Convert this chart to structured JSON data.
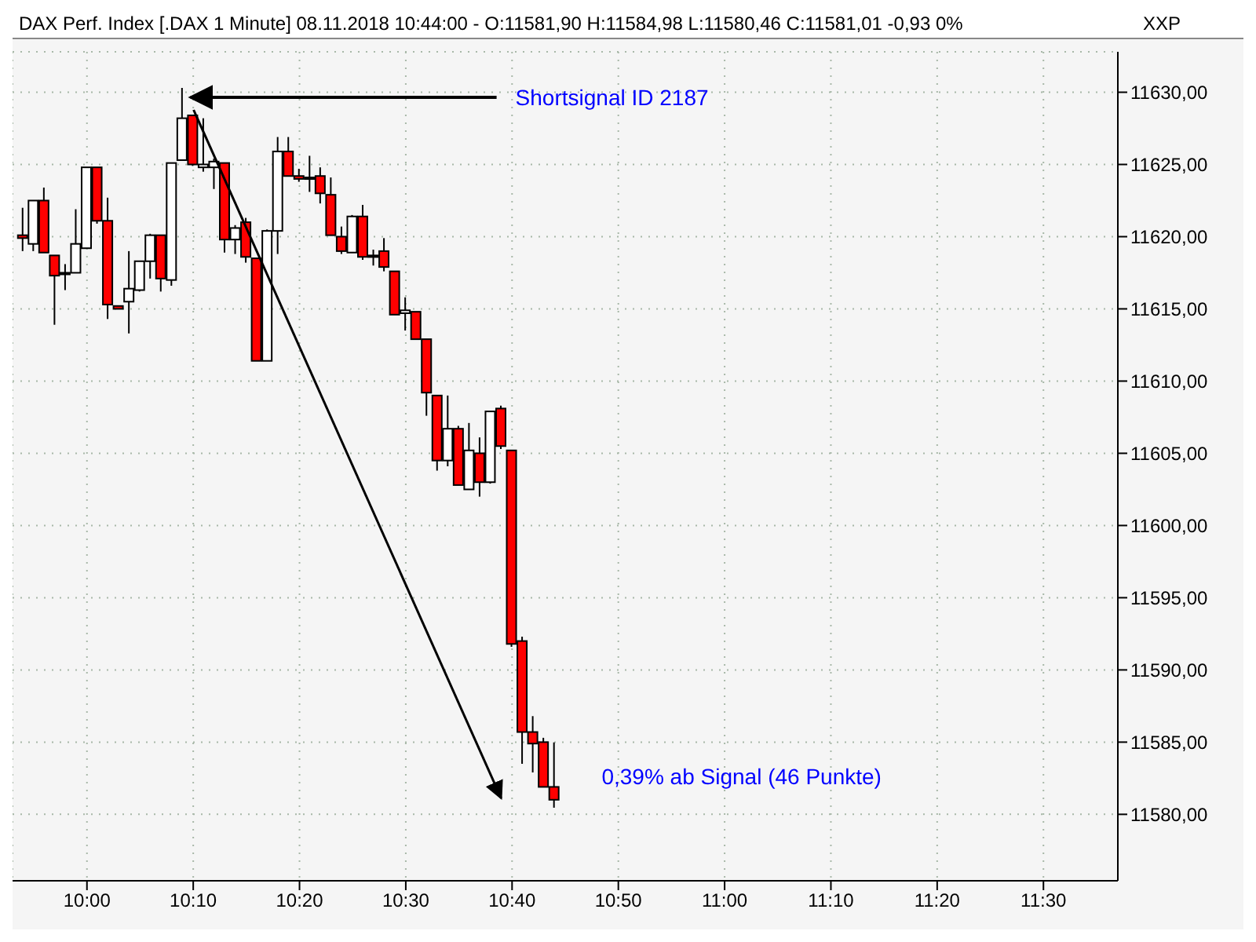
{
  "chart_data": {
    "type": "candlestick",
    "title": "DAX Perf. Index [.DAX  1 Minute] 08.11.2018 10:44:00 - O:11581,90 H:11584,98 L:11580,46 C:11581,01 -0,93 0%",
    "x": [
      "2018-11-08T09:54",
      "2018-11-08T09:55",
      "2018-11-08T09:56",
      "2018-11-08T09:57",
      "2018-11-08T09:58",
      "2018-11-08T09:59",
      "2018-11-08T10:00",
      "2018-11-08T10:01",
      "2018-11-08T10:02",
      "2018-11-08T10:03",
      "2018-11-08T10:04",
      "2018-11-08T10:05",
      "2018-11-08T10:06",
      "2018-11-08T10:07",
      "2018-11-08T10:08",
      "2018-11-08T10:09",
      "2018-11-08T10:10",
      "2018-11-08T10:11",
      "2018-11-08T10:12",
      "2018-11-08T10:13",
      "2018-11-08T10:14",
      "2018-11-08T10:15",
      "2018-11-08T10:16",
      "2018-11-08T10:17",
      "2018-11-08T10:18",
      "2018-11-08T10:19",
      "2018-11-08T10:20",
      "2018-11-08T10:21",
      "2018-11-08T10:22",
      "2018-11-08T10:23",
      "2018-11-08T10:24",
      "2018-11-08T10:25",
      "2018-11-08T10:26",
      "2018-11-08T10:27",
      "2018-11-08T10:28",
      "2018-11-08T10:29",
      "2018-11-08T10:30",
      "2018-11-08T10:31",
      "2018-11-08T10:32",
      "2018-11-08T10:33",
      "2018-11-08T10:34",
      "2018-11-08T10:35",
      "2018-11-08T10:36",
      "2018-11-08T10:37",
      "2018-11-08T10:38",
      "2018-11-08T10:39",
      "2018-11-08T10:40",
      "2018-11-08T10:41",
      "2018-11-08T10:42",
      "2018-11-08T10:43",
      "2018-11-08T10:44"
    ],
    "ohlc": [
      [
        11620.1,
        11622.0,
        11619.0,
        11619.9
      ],
      [
        11619.5,
        11622.5,
        11619.0,
        11622.5
      ],
      [
        11622.5,
        11623.4,
        11618.9,
        11618.9
      ],
      [
        11618.7,
        11618.7,
        11613.9,
        11617.3
      ],
      [
        11617.5,
        11618.1,
        11616.3,
        11617.5
      ],
      [
        11617.5,
        11621.9,
        11617.5,
        11619.5
      ],
      [
        11619.2,
        11624.8,
        11619.2,
        11624.8
      ],
      [
        11624.8,
        11624.8,
        11620.9,
        11621.1
      ],
      [
        11621.1,
        11622.7,
        11614.3,
        11615.3
      ],
      [
        11615.2,
        11615.2,
        11615.0,
        11615.0
      ],
      [
        11615.5,
        11619.0,
        11613.3,
        11616.4
      ],
      [
        11616.3,
        11618.3,
        11616.2,
        11618.3
      ],
      [
        11618.3,
        11620.2,
        11617.1,
        11620.1
      ],
      [
        11620.1,
        11620.1,
        11616.2,
        11617.1
      ],
      [
        11617.0,
        11625.1,
        11616.6,
        11625.1
      ],
      [
        11625.3,
        11630.3,
        11625.3,
        11628.2
      ],
      [
        11628.4,
        11628.4,
        11624.9,
        11625.0
      ],
      [
        11624.8,
        11628.2,
        11624.5,
        11625.0
      ],
      [
        11624.8,
        11625.4,
        11623.3,
        11625.2
      ],
      [
        11625.1,
        11625.1,
        11618.9,
        11619.8
      ],
      [
        11619.8,
        11620.8,
        11618.8,
        11620.6
      ],
      [
        11621.0,
        11621.3,
        11618.2,
        11618.6
      ],
      [
        11618.5,
        11618.5,
        11611.4,
        11611.4
      ],
      [
        11611.4,
        11620.5,
        11611.4,
        11620.4
      ],
      [
        11620.4,
        11626.9,
        11618.8,
        11625.9
      ],
      [
        11625.9,
        11626.9,
        11624.2,
        11624.2
      ],
      [
        11624.2,
        11624.7,
        11623.8,
        11624.0
      ],
      [
        11624.1,
        11625.6,
        11623.1,
        11624.1
      ],
      [
        11624.2,
        11624.8,
        11622.3,
        11623.0
      ],
      [
        11622.9,
        11624.1,
        11620.1,
        11620.1
      ],
      [
        11620.0,
        11620.7,
        11618.8,
        11619.0
      ],
      [
        11618.9,
        11621.5,
        11618.9,
        11621.4
      ],
      [
        11621.4,
        11622.2,
        11618.4,
        11618.6
      ],
      [
        11618.7,
        11619.1,
        11618.0,
        11618.7
      ],
      [
        11619.0,
        11619.9,
        11617.6,
        11617.9
      ],
      [
        11617.6,
        11617.6,
        11614.6,
        11614.6
      ],
      [
        11614.7,
        11615.8,
        11613.5,
        11614.9
      ],
      [
        11614.8,
        11614.8,
        11612.9,
        11612.9
      ],
      [
        11612.9,
        11612.9,
        11607.6,
        11609.2
      ],
      [
        11609.0,
        11609.0,
        11603.8,
        11604.5
      ],
      [
        11604.5,
        11609.0,
        11604.1,
        11606.7
      ],
      [
        11606.7,
        11606.9,
        11602.8,
        11602.8
      ],
      [
        11602.5,
        11607.1,
        11602.5,
        11605.2
      ],
      [
        11605.0,
        11606.1,
        11602.0,
        11603.0
      ],
      [
        11603.0,
        11607.9,
        11602.9,
        11607.9
      ],
      [
        11608.1,
        11608.3,
        11605.3,
        11605.5
      ],
      [
        11605.2,
        11605.2,
        11591.6,
        11591.8
      ],
      [
        11592.0,
        11592.3,
        11583.5,
        11585.7
      ],
      [
        11585.7,
        11586.8,
        11582.9,
        11584.9
      ],
      [
        11585.0,
        11585.3,
        11581.9,
        11581.9
      ],
      [
        11581.9,
        11584.98,
        11580.46,
        11581.01
      ]
    ],
    "colors": [
      "#ff0000",
      "#ffffff",
      "#ff0000",
      "#ff0000",
      "#ffffff",
      "#ffffff",
      "#ffffff",
      "#ff0000",
      "#ff0000",
      "#ff0000",
      "#ffffff",
      "#ffffff",
      "#ffffff",
      "#ff0000",
      "#ffffff",
      "#ffffff",
      "#ff0000",
      "#ffffff",
      "#ffffff",
      "#ff0000",
      "#ffffff",
      "#ff0000",
      "#ff0000",
      "#ffffff",
      "#ffffff",
      "#ff0000",
      "#ff0000",
      "#ffffff",
      "#ff0000",
      "#ff0000",
      "#ff0000",
      "#ffffff",
      "#ff0000",
      "#ffffff",
      "#ff0000",
      "#ff0000",
      "#ffffff",
      "#ff0000",
      "#ff0000",
      "#ff0000",
      "#ffffff",
      "#ff0000",
      "#ffffff",
      "#ff0000",
      "#ffffff",
      "#ff0000",
      "#ff0000",
      "#ff0000",
      "#ff0000",
      "#ff0000",
      "#ff0000"
    ],
    "xlim": [
      "2018-11-08T09:53",
      "2018-11-08T11:37"
    ],
    "xticks": [
      {
        "value": "2018-11-08T10:00",
        "label": "10:00"
      },
      {
        "value": "2018-11-08T10:10",
        "label": "10:10"
      },
      {
        "value": "2018-11-08T10:20",
        "label": "10:20"
      },
      {
        "value": "2018-11-08T10:30",
        "label": "10:30"
      },
      {
        "value": "2018-11-08T10:40",
        "label": "10:40"
      },
      {
        "value": "2018-11-08T10:50",
        "label": "10:50"
      },
      {
        "value": "2018-11-08T11:00",
        "label": "11:00"
      },
      {
        "value": "2018-11-08T11:10",
        "label": "11:10"
      },
      {
        "value": "2018-11-08T11:20",
        "label": "11:20"
      },
      {
        "value": "2018-11-08T11:30",
        "label": "11:30"
      }
    ],
    "ylim": [
      11575.4,
      11632.8
    ],
    "yticks": [
      {
        "value": 11580,
        "label": "11580,00"
      },
      {
        "value": 11585,
        "label": "11585,00"
      },
      {
        "value": 11590,
        "label": "11590,00"
      },
      {
        "value": 11595,
        "label": "11595,00"
      },
      {
        "value": 11600,
        "label": "11600,00"
      },
      {
        "value": 11605,
        "label": "11605,00"
      },
      {
        "value": 11610,
        "label": "11610,00"
      },
      {
        "value": 11615,
        "label": "11615,00"
      },
      {
        "value": 11620,
        "label": "11620,00"
      },
      {
        "value": 11625,
        "label": "11625,00"
      },
      {
        "value": 11630,
        "label": "11630,00"
      }
    ],
    "grid": true,
    "annotations": [
      "Shortsignal ID 2187",
      "0,39% ab Signal (46 Punkte)",
      "XXP"
    ]
  }
}
